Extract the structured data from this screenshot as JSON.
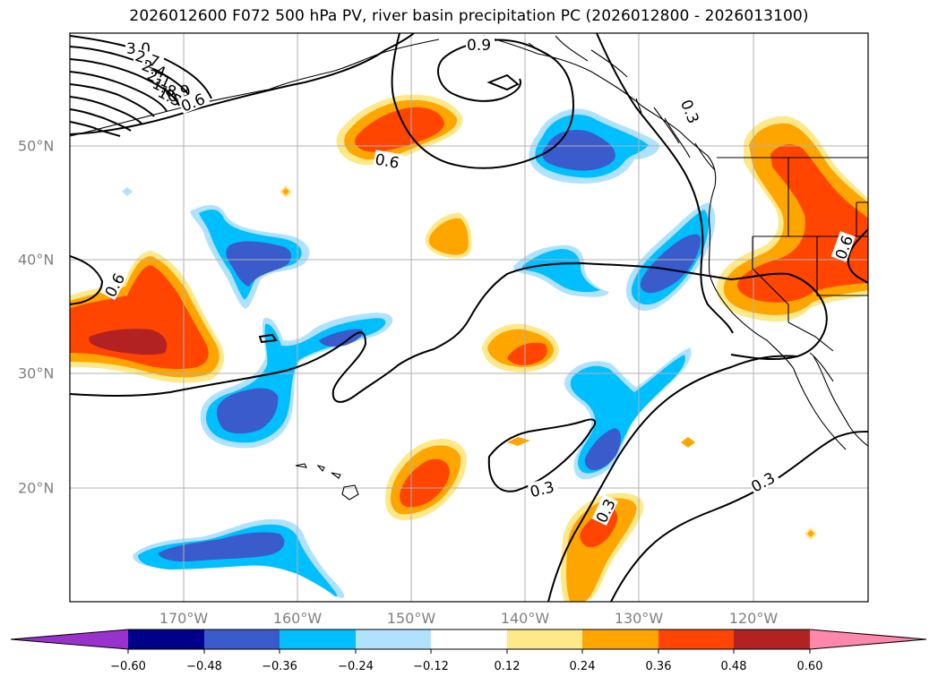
{
  "title": "2026012600 F072 500 hPa PV, river basin precipitation PC (2026012800 - 2026013100)",
  "axes": {
    "lon_labels": [
      "170°W",
      "160°W",
      "150°W",
      "140°W",
      "130°W",
      "120°W"
    ],
    "lat_labels": [
      "50°N",
      "40°N",
      "30°N",
      "20°N"
    ]
  },
  "contour_labels": [
    "3.0",
    "2.7",
    "2.4",
    "2.1",
    "1.8",
    "1.5",
    "0.9",
    "0.6",
    "0.9",
    "0.6",
    "0.3",
    "0.6",
    "0.6",
    "0.3",
    "0.3",
    "0.3"
  ],
  "colorbar": {
    "ticks": [
      "−0.60",
      "−0.48",
      "−0.36",
      "−0.24",
      "−0.12",
      "0.12",
      "0.24",
      "0.36",
      "0.48",
      "0.60"
    ],
    "colors": [
      "#9932cc",
      "#00008b",
      "#3a5bcc",
      "#00bfff",
      "#b0e2ff",
      "#ffffff",
      "#fde88a",
      "#ffa500",
      "#ff4500",
      "#b22222",
      "#ff88aa"
    ]
  },
  "palette": {
    "land_outline": "#000000",
    "grid": "#b0b0b0",
    "pos_light": "#fde88a",
    "pos_mid": "#ffa500",
    "pos_strong": "#ff4500",
    "pos_max": "#b22222",
    "neg_light": "#b0e2ff",
    "neg_mid": "#00bfff",
    "neg_strong": "#3a5bcc"
  }
}
